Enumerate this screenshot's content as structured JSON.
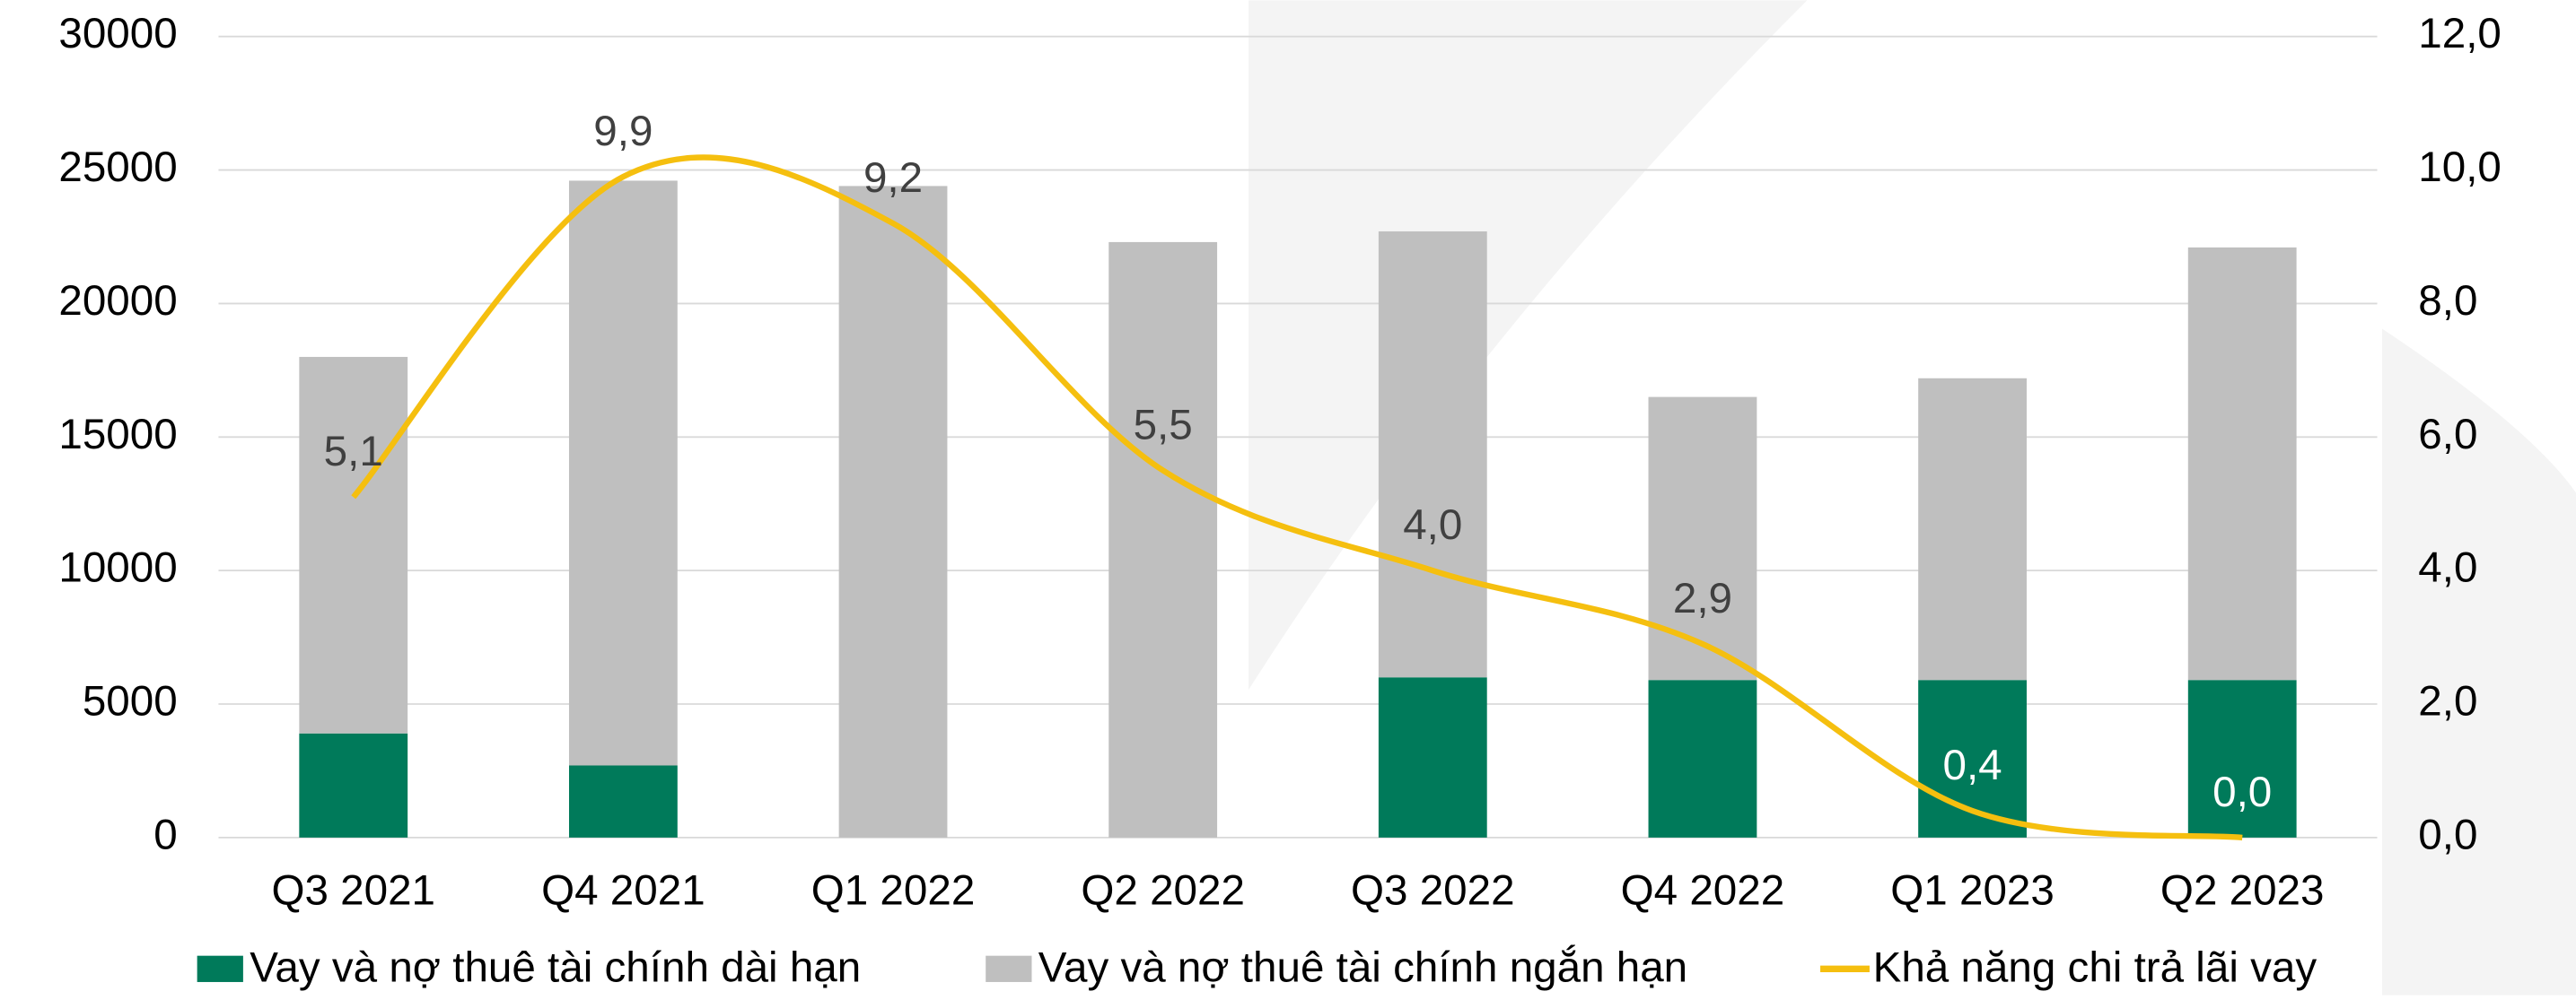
{
  "chart_data": {
    "type": "bar+line",
    "categories": [
      "Q3 2021",
      "Q4 2021",
      "Q1 2022",
      "Q2 2022",
      "Q3 2022",
      "Q4 2022",
      "Q1 2023",
      "Q2 2023"
    ],
    "series": [
      {
        "name": "Vay và nợ thuê tài chính dài hạn",
        "color": "#007a5a",
        "type": "bar",
        "values": [
          3900,
          2700,
          0,
          0,
          6000,
          5900,
          5900,
          5900
        ]
      },
      {
        "name": "Vay và nợ thuê tài chính ngắn hạn",
        "color": "#bfbfbf",
        "type": "bar",
        "values": [
          14100,
          21900,
          24400,
          22300,
          16700,
          10600,
          11300,
          16200
        ]
      },
      {
        "name": "Khả năng chi trả lãi vay",
        "color": "#f5bf0f",
        "type": "line",
        "axis": "y2",
        "values": [
          5.1,
          9.9,
          9.2,
          5.5,
          4.0,
          2.9,
          0.4,
          0.0
        ],
        "value_labels": [
          "5,1",
          "9,9",
          "9,2",
          "5,5",
          "4,0",
          "2,9",
          "0,4",
          "0,0"
        ]
      }
    ],
    "ylim": [
      0,
      30000
    ],
    "yticks": [
      0,
      5000,
      10000,
      15000,
      20000,
      25000,
      30000
    ],
    "y2lim": [
      0,
      12
    ],
    "y2ticks": [
      {
        "value": 0,
        "label": "0,0"
      },
      {
        "value": 2,
        "label": "2,0"
      },
      {
        "value": 4,
        "label": "4,0"
      },
      {
        "value": 6,
        "label": "6,0"
      },
      {
        "value": 8,
        "label": "8,0"
      },
      {
        "value": 10,
        "label": "10,0"
      },
      {
        "value": 12,
        "label": "12,0"
      }
    ],
    "grid": true,
    "legend": "bottom",
    "stacked": true
  }
}
